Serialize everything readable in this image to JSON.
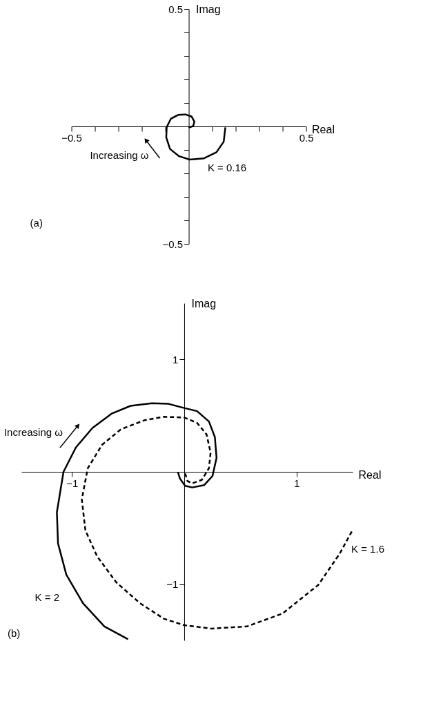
{
  "chart_data": [
    {
      "type": "line",
      "xlabel": "Real",
      "ylabel": "Imag",
      "xlim": [
        -0.5,
        0.5
      ],
      "ylim": [
        -0.5,
        0.5
      ],
      "xticks": [
        {
          "value": -0.5,
          "label": "−0.5"
        },
        {
          "value": -0.4,
          "label": null
        },
        {
          "value": -0.3,
          "label": null
        },
        {
          "value": -0.2,
          "label": null
        },
        {
          "value": -0.1,
          "label": null
        },
        {
          "value": 0.1,
          "label": null
        },
        {
          "value": 0.2,
          "label": null
        },
        {
          "value": 0.3,
          "label": null
        },
        {
          "value": 0.4,
          "label": null
        },
        0.5
      ],
      "yticks": [
        {
          "value": -0.5,
          "label": "−0.5"
        },
        {
          "value": -0.4,
          "label": null
        },
        {
          "value": -0.3,
          "label": null
        },
        {
          "value": -0.2,
          "label": null
        },
        {
          "value": -0.1,
          "label": null
        },
        {
          "value": 0.1,
          "label": null
        },
        {
          "value": 0.2,
          "label": null
        },
        {
          "value": 0.3,
          "label": null
        },
        {
          "value": 0.4,
          "label": null
        },
        0.5
      ],
      "series": [
        {
          "name": "K = 0.16",
          "color": "#000000",
          "line_style": "solid",
          "x": [
            0.156,
            0.149,
            0.118,
            0.065,
            0.004,
            -0.041,
            -0.08,
            -0.096,
            -0.094,
            -0.076,
            -0.045,
            -0.014,
            0.012,
            0.024,
            0.019,
            0.004,
            0.0
          ],
          "values": [
            -0.004,
            -0.065,
            -0.11,
            -0.136,
            -0.141,
            -0.127,
            -0.096,
            -0.047,
            -0.003,
            0.033,
            0.049,
            0.051,
            0.042,
            0.02,
            0.002,
            -0.004,
            0.0
          ]
        }
      ],
      "annotations": [
        "Increasing ω",
        "(a)"
      ]
    },
    {
      "type": "line",
      "xlabel": "Real",
      "ylabel": "Imag",
      "xlim": [
        -1.45,
        1.5
      ],
      "ylim": [
        -1.5,
        1.5
      ],
      "xticks": [
        {
          "value": -1,
          "label": "−1"
        },
        1
      ],
      "yticks": [
        {
          "value": -1,
          "label": "−1"
        },
        1
      ],
      "series": [
        {
          "name": "K = 2",
          "color": "#000000",
          "line_style": "solid",
          "x": [
            -0.055,
            -0.038,
            0.008,
            0.072,
            0.178,
            0.252,
            0.288,
            0.273,
            0.22,
            0.114,
            0.0,
            -0.14,
            -0.288,
            -0.478,
            -0.648,
            -0.817,
            -0.965,
            -1.075,
            -1.134,
            -1.124,
            -1.05,
            -0.902,
            -0.711,
            -0.5
          ],
          "values": [
            -0.005,
            -0.06,
            -0.125,
            -0.139,
            -0.118,
            -0.037,
            0.125,
            0.309,
            0.448,
            0.54,
            0.568,
            0.605,
            0.61,
            0.587,
            0.517,
            0.39,
            0.217,
            0.0,
            -0.36,
            -0.637,
            -0.915,
            -1.169,
            -1.376,
            -1.49
          ]
        },
        {
          "name": "K = 1.6",
          "color": "#000000",
          "line_style": "dashed",
          "x": [
            0.008,
            0.03,
            0.072,
            0.157,
            0.22,
            0.235,
            0.199,
            0.114,
            0.0,
            -0.182,
            -0.351,
            -0.563,
            -0.732,
            -0.859,
            -0.912,
            -0.88,
            -0.775,
            -0.605,
            -0.394,
            -0.182,
            0.0,
            0.241,
            0.559,
            0.876,
            1.194,
            1.384,
            1.5
          ],
          "values": [
            -0.014,
            -0.083,
            -0.102,
            -0.072,
            0.032,
            0.171,
            0.333,
            0.436,
            0.483,
            0.49,
            0.46,
            0.379,
            0.24,
            0.032,
            -0.245,
            -0.522,
            -0.753,
            -0.984,
            -1.169,
            -1.307,
            -1.365,
            -1.395,
            -1.376,
            -1.261,
            -1.007,
            -0.73,
            -0.517
          ]
        }
      ],
      "annotations": [
        "Increasing ω",
        "(b)"
      ]
    }
  ]
}
